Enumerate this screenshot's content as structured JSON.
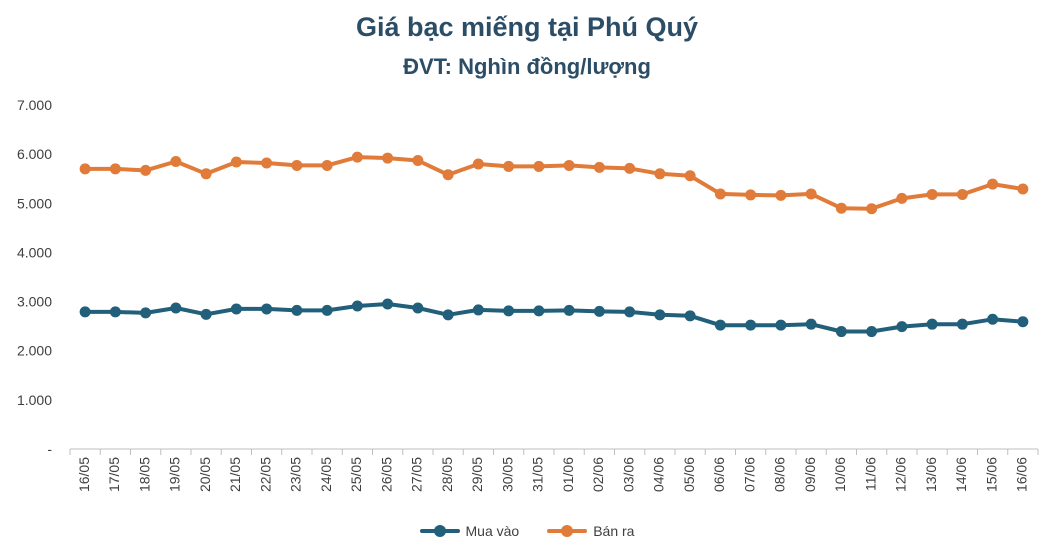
{
  "chart_data": {
    "type": "line",
    "title": "Giá bạc miếng tại Phú Quý",
    "subtitle": "ĐVT: Nghìn đồng/lượng",
    "categories": [
      "16/05",
      "17/05",
      "18/05",
      "19/05",
      "20/05",
      "21/05",
      "22/05",
      "23/05",
      "24/05",
      "25/05",
      "26/05",
      "27/05",
      "28/05",
      "29/05",
      "30/05",
      "31/05",
      "01/06",
      "02/06",
      "03/06",
      "04/06",
      "05/06",
      "06/06",
      "07/06",
      "08/06",
      "09/06",
      "10/06",
      "11/06",
      "12/06",
      "13/06",
      "14/06",
      "15/06",
      "16/06"
    ],
    "series": [
      {
        "name": "Mua vào",
        "color": "#215f7a",
        "values": [
          2790,
          2790,
          2770,
          2870,
          2740,
          2850,
          2850,
          2820,
          2820,
          2910,
          2950,
          2870,
          2730,
          2830,
          2810,
          2810,
          2820,
          2800,
          2790,
          2730,
          2710,
          2520,
          2520,
          2520,
          2540,
          2390,
          2390,
          2490,
          2540,
          2540,
          2640,
          2590
        ]
      },
      {
        "name": "Bán ra",
        "color": "#e07b39",
        "values": [
          5700,
          5700,
          5670,
          5850,
          5600,
          5840,
          5820,
          5770,
          5770,
          5940,
          5920,
          5870,
          5580,
          5800,
          5750,
          5750,
          5770,
          5730,
          5710,
          5600,
          5560,
          5190,
          5170,
          5160,
          5190,
          4900,
          4890,
          5100,
          5180,
          5180,
          5390,
          5290
        ]
      }
    ],
    "yticks": [
      "-",
      "1.000",
      "2.000",
      "3.000",
      "4.000",
      "5.000",
      "6.000",
      "7.000"
    ],
    "ylim": [
      0,
      7000
    ],
    "legend_position": "bottom"
  }
}
